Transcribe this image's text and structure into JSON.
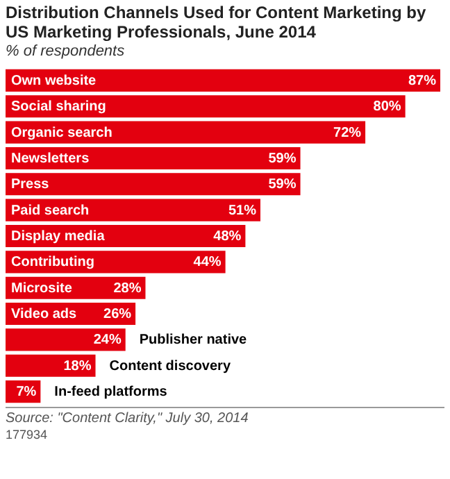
{
  "chart_data": {
    "type": "bar",
    "orientation": "horizontal",
    "title": "Distribution Channels Used for Content Marketing by US Marketing Professionals, June 2014",
    "subtitle": "% of respondents",
    "categories": [
      "Own website",
      "Social sharing",
      "Organic search",
      "Newsletters",
      "Press",
      "Paid search",
      "Display media",
      "Contributing",
      "Microsite",
      "Video ads",
      "Publisher native",
      "Content discovery",
      "In-feed platforms"
    ],
    "values": [
      87,
      80,
      72,
      59,
      59,
      51,
      48,
      44,
      28,
      26,
      24,
      18,
      7
    ],
    "value_labels": [
      "87%",
      "80%",
      "72%",
      "59%",
      "59%",
      "51%",
      "48%",
      "44%",
      "28%",
      "26%",
      "24%",
      "18%",
      "7%"
    ],
    "color": "#e3000f",
    "annotations": [
      "Source: \"Content Clarity,\" July 30, 2014",
      "177934"
    ]
  }
}
